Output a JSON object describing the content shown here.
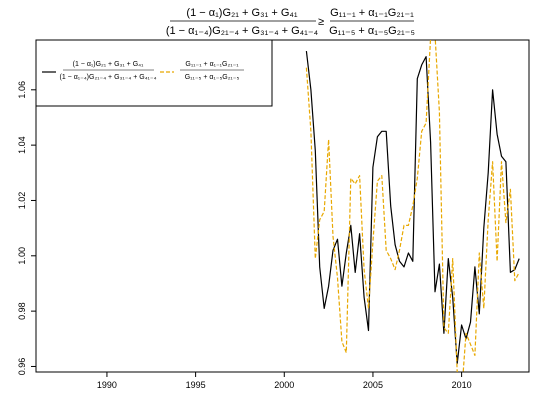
{
  "chart_data": {
    "type": "line",
    "title": {
      "lhs_numerator": "(1 − α₁)G₂₁ + G₃₁ + G₄₁",
      "lhs_denominator": "(1 − α₁₋₄)G₂₁₋₄ + G₃₁₋₄ + G₄₁₋₄",
      "relation": "≥",
      "rhs_numerator": "G₁₁₋₁ + α₁₋₁G₂₁₋₁",
      "rhs_denominator": "G₁₁₋₅ + α₁₋₅G₂₁₋₅"
    },
    "xlabel": "",
    "ylabel": "",
    "xlim": [
      1986.0,
      2013.8
    ],
    "ylim": [
      0.958,
      1.078
    ],
    "x_ticks": [
      1990,
      1995,
      2000,
      2005,
      2010
    ],
    "x_tick_labels": [
      "1990",
      "1995",
      "2000",
      "2005",
      "2010"
    ],
    "y_ticks": [
      0.96,
      0.98,
      1.0,
      1.02,
      1.04,
      1.06
    ],
    "y_tick_labels": [
      "0.96",
      "0.98",
      "1.00",
      "1.02",
      "1.04",
      "1.06"
    ],
    "grid": false,
    "legend_position": "top-left",
    "series": [
      {
        "name": "(1 − α₁)G₂₁ + G₃₁ + G₄₁ / (1 − α₁₋₄)G₂₁₋₄ + G₃₁₋₄ + G₄₁₋₄",
        "legend_numerator": "(1 − α₁)G₂₁ + G₃₁ + G₄₁",
        "legend_denominator": "(1 − α₁₋₄)G₂₁₋₄ + G₃₁₋₄ + G₄₁₋₄",
        "color": "#000000",
        "dash": "solid",
        "x": [
          2001.25,
          2001.5,
          2001.75,
          2002.0,
          2002.25,
          2002.5,
          2002.75,
          2003.0,
          2003.25,
          2003.5,
          2003.75,
          2004.0,
          2004.25,
          2004.5,
          2004.75,
          2005.0,
          2005.25,
          2005.5,
          2005.75,
          2006.0,
          2006.25,
          2006.5,
          2006.75,
          2007.0,
          2007.25,
          2007.5,
          2007.75,
          2008.0,
          2008.25,
          2008.5,
          2008.75,
          2009.0,
          2009.25,
          2009.5,
          2009.75,
          2010.0,
          2010.25,
          2010.5,
          2010.75,
          2011.0,
          2011.25,
          2011.5,
          2011.75,
          2012.0,
          2012.25,
          2012.5,
          2012.75,
          2013.0,
          2013.25
        ],
        "values": [
          1.074,
          1.06,
          1.038,
          0.996,
          0.981,
          0.989,
          1.002,
          1.006,
          0.989,
          1.001,
          1.011,
          0.994,
          1.008,
          0.985,
          0.973,
          1.032,
          1.043,
          1.045,
          1.045,
          1.018,
          1.004,
          0.998,
          0.996,
          1.001,
          0.998,
          1.064,
          1.069,
          1.072,
          1.041,
          0.987,
          0.997,
          0.972,
          0.999,
          0.985,
          0.961,
          0.975,
          0.97,
          0.976,
          0.996,
          0.979,
          1.01,
          1.03,
          1.06,
          1.044,
          1.036,
          1.034,
          0.994,
          0.995,
          0.999
        ]
      },
      {
        "name": "G₁₁₋₁ + α₁₋₁G₂₁₋₁ / G₁₁₋₅ + α₁₋₅G₂₁₋₅",
        "legend_numerator": "G₁₁₋₁ + α₁₋₁G₂₁₋₁",
        "legend_denominator": "G₁₁₋₅ + α₁₋₅G₂₁₋₅",
        "color": "#e8a800",
        "dash": "dashed",
        "x": [
          2001.25,
          2001.5,
          2001.75,
          2002.0,
          2002.25,
          2002.5,
          2002.75,
          2003.0,
          2003.25,
          2003.5,
          2003.75,
          2004.0,
          2004.25,
          2004.5,
          2004.75,
          2005.0,
          2005.25,
          2005.5,
          2005.75,
          2006.0,
          2006.25,
          2006.5,
          2006.75,
          2007.0,
          2007.25,
          2007.5,
          2007.75,
          2008.0,
          2008.25,
          2008.5,
          2008.75,
          2009.0,
          2009.25,
          2009.5,
          2009.75,
          2010.0,
          2010.25,
          2010.5,
          2010.75,
          2011.0,
          2011.25,
          2011.5,
          2011.75,
          2012.0,
          2012.25,
          2012.5,
          2012.75,
          2013.0,
          2013.25
        ],
        "values": [
          1.068,
          1.045,
          0.999,
          1.013,
          1.016,
          1.042,
          1.007,
          0.992,
          0.969,
          0.965,
          1.028,
          1.026,
          1.029,
          0.995,
          0.981,
          1.005,
          1.027,
          1.029,
          1.002,
          0.999,
          0.995,
          1.002,
          1.011,
          1.011,
          1.018,
          1.028,
          1.045,
          1.048,
          1.079,
          1.08,
          1.052,
          0.974,
          0.972,
          0.999,
          0.958,
          0.95,
          0.972,
          0.968,
          0.964,
          1.001,
          0.981,
          1.013,
          1.034,
          0.998,
          1.034,
          1.012,
          1.024,
          0.991,
          0.994
        ]
      }
    ]
  }
}
